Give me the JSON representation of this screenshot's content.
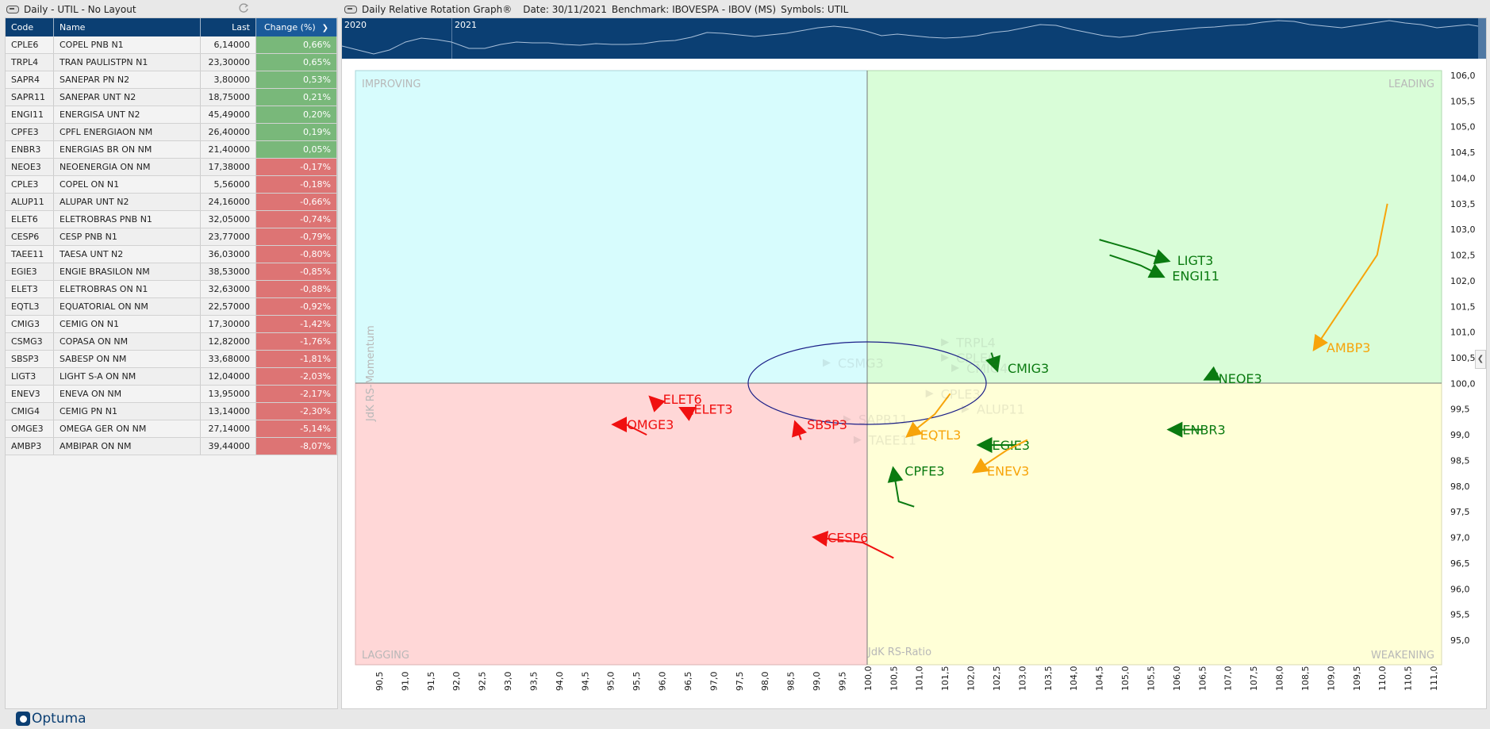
{
  "left_panel": {
    "title": "Daily - UTIL - No Layout",
    "columns": [
      "Code",
      "Name",
      "Last",
      "Change (%)"
    ],
    "rows": [
      {
        "code": "CPLE6",
        "name": "COPEL PNB N1",
        "last": "6,14000",
        "change": "0,66%",
        "dir": "pos"
      },
      {
        "code": "TRPL4",
        "name": "TRAN PAULISTPN  N1",
        "last": "23,30000",
        "change": "0,65%",
        "dir": "pos"
      },
      {
        "code": "SAPR4",
        "name": "SANEPAR PN  N2",
        "last": "3,80000",
        "change": "0,53%",
        "dir": "pos"
      },
      {
        "code": "SAPR11",
        "name": "SANEPAR UNT N2",
        "last": "18,75000",
        "change": "0,21%",
        "dir": "pos"
      },
      {
        "code": "ENGI11",
        "name": "ENERGISA  UNT N2",
        "last": "45,49000",
        "change": "0,20%",
        "dir": "pos"
      },
      {
        "code": "CPFE3",
        "name": "CPFL ENERGIAON  NM",
        "last": "26,40000",
        "change": "0,19%",
        "dir": "pos"
      },
      {
        "code": "ENBR3",
        "name": "ENERGIAS BR ON  NM",
        "last": "21,40000",
        "change": "0,05%",
        "dir": "pos"
      },
      {
        "code": "NEOE3",
        "name": "NEOENERGIA  ON  NM",
        "last": "17,38000",
        "change": "-0,17%",
        "dir": "neg"
      },
      {
        "code": "CPLE3",
        "name": "COPEL ON  N1",
        "last": "5,56000",
        "change": "-0,18%",
        "dir": "neg"
      },
      {
        "code": "ALUP11",
        "name": "ALUPAR  UNT N2",
        "last": "24,16000",
        "change": "-0,66%",
        "dir": "neg"
      },
      {
        "code": "ELET6",
        "name": "ELETROBRAS  PNB N1",
        "last": "32,05000",
        "change": "-0,74%",
        "dir": "neg"
      },
      {
        "code": "CESP6",
        "name": "CESP  PNB N1",
        "last": "23,77000",
        "change": "-0,79%",
        "dir": "neg"
      },
      {
        "code": "TAEE11",
        "name": "TAESA UNT N2",
        "last": "36,03000",
        "change": "-0,80%",
        "dir": "neg"
      },
      {
        "code": "EGIE3",
        "name": "ENGIE BRASILON  NM",
        "last": "38,53000",
        "change": "-0,85%",
        "dir": "neg"
      },
      {
        "code": "ELET3",
        "name": "ELETROBRAS  ON  N1",
        "last": "32,63000",
        "change": "-0,88%",
        "dir": "neg"
      },
      {
        "code": "EQTL3",
        "name": "EQUATORIAL  ON  NM",
        "last": "22,57000",
        "change": "-0,92%",
        "dir": "neg"
      },
      {
        "code": "CMIG3",
        "name": "CEMIG ON  N1",
        "last": "17,30000",
        "change": "-1,42%",
        "dir": "neg"
      },
      {
        "code": "CSMG3",
        "name": "COPASA  ON  NM",
        "last": "12,82000",
        "change": "-1,76%",
        "dir": "neg"
      },
      {
        "code": "SBSP3",
        "name": "SABESP  ON  NM",
        "last": "33,68000",
        "change": "-1,81%",
        "dir": "neg"
      },
      {
        "code": "LIGT3",
        "name": "LIGHT S-A ON  NM",
        "last": "12,04000",
        "change": "-2,03%",
        "dir": "neg"
      },
      {
        "code": "ENEV3",
        "name": "ENEVA ON  NM",
        "last": "13,95000",
        "change": "-2,17%",
        "dir": "neg"
      },
      {
        "code": "CMIG4",
        "name": "CEMIG PN  N1",
        "last": "13,14000",
        "change": "-2,30%",
        "dir": "neg"
      },
      {
        "code": "OMGE3",
        "name": "OMEGA GER ON  NM",
        "last": "27,14000",
        "change": "-5,14%",
        "dir": "neg"
      },
      {
        "code": "AMBP3",
        "name": "AMBIPAR ON  NM",
        "last": "39,44000",
        "change": "-8,07%",
        "dir": "neg"
      }
    ]
  },
  "chart_panel": {
    "title": "Daily Relative Rotation Graph®",
    "date_label": "Date: 30/11/2021",
    "benchmark_label": "Benchmark: IBOVESPA - IBOV (MS)",
    "symbols_label": "Symbols: UTIL",
    "navigator_years": [
      "2020",
      "2021"
    ]
  },
  "brand": {
    "logo_text": "Optuma"
  },
  "colors": {
    "header_bg": "#0b3f73",
    "positive": "#79b87a",
    "negative": "#dd7474",
    "leading": "#d9fdd8",
    "improving": "#d7fcfd",
    "lagging": "#ffd7d7",
    "weakening": "#ffffd7",
    "green_series": "#0a7a10",
    "orange_series": "#f7a40a",
    "red_series": "#f01010"
  },
  "chart_data": {
    "type": "scatter",
    "title": "Daily Relative Rotation Graph®",
    "xlabel": "JdK RS-Ratio",
    "ylabel": "JdK RS-Momentum",
    "xlim": [
      90.5,
      111.0
    ],
    "ylim": [
      95.0,
      106.0
    ],
    "x_ticks": [
      "90,5",
      "91,0",
      "91,5",
      "92,0",
      "92,5",
      "93,0",
      "93,5",
      "94,0",
      "94,5",
      "95,0",
      "95,5",
      "96,0",
      "96,5",
      "97,0",
      "97,5",
      "98,0",
      "98,5",
      "99,0",
      "99,5",
      "100,0",
      "100,5",
      "101,0",
      "101,5",
      "102,0",
      "102,5",
      "103,0",
      "103,5",
      "104,0",
      "104,5",
      "105,0",
      "105,5",
      "106,0",
      "106,5",
      "107,0",
      "107,5",
      "108,0",
      "108,5",
      "109,0",
      "109,5",
      "110,0",
      "110,5",
      "111,0"
    ],
    "y_ticks": [
      "106,0",
      "105,5",
      "105,0",
      "104,5",
      "104,0",
      "103,5",
      "103,0",
      "102,5",
      "102,0",
      "101,5",
      "101,0",
      "100,5",
      "100,0",
      "99,5",
      "99,0",
      "98,5",
      "98,0",
      "97,5",
      "97,0",
      "96,5",
      "96,0",
      "95,5",
      "95,0"
    ],
    "quadrants": [
      "IMPROVING",
      "LEADING",
      "LAGGING",
      "WEAKENING"
    ],
    "grid": false,
    "center": [
      100.0,
      100.0
    ],
    "series": [
      {
        "name": "LIGT3",
        "color": "green",
        "tail": [
          [
            104.5,
            102.8
          ],
          [
            105.2,
            102.6
          ],
          [
            105.8,
            102.4
          ]
        ]
      },
      {
        "name": "ENGI11",
        "color": "green",
        "tail": [
          [
            104.7,
            102.5
          ],
          [
            105.3,
            102.3
          ],
          [
            105.7,
            102.1
          ]
        ]
      },
      {
        "name": "AMBP3",
        "color": "orange",
        "tail": [
          [
            110.1,
            103.5
          ],
          [
            109.9,
            102.5
          ],
          [
            108.7,
            100.7
          ]
        ]
      },
      {
        "name": "CMIG3",
        "color": "green",
        "tail": [
          [
            102.4,
            100.6
          ],
          [
            102.5,
            100.3
          ]
        ]
      },
      {
        "name": "NEOE3",
        "color": "green",
        "tail": [
          [
            106.8,
            100.2
          ],
          [
            106.6,
            100.1
          ]
        ]
      },
      {
        "name": "ENBR3",
        "color": "green",
        "tail": [
          [
            106.5,
            99.1
          ],
          [
            106.2,
            99.1
          ],
          [
            105.9,
            99.1
          ]
        ]
      },
      {
        "name": "EGIE3",
        "color": "green",
        "tail": [
          [
            102.9,
            98.8
          ],
          [
            102.4,
            98.8
          ],
          [
            102.2,
            98.8
          ]
        ]
      },
      {
        "name": "ENEV3",
        "color": "orange",
        "tail": [
          [
            103.1,
            98.9
          ],
          [
            102.7,
            98.7
          ],
          [
            102.1,
            98.3
          ]
        ]
      },
      {
        "name": "EQTL3",
        "color": "orange",
        "tail": [
          [
            101.6,
            99.8
          ],
          [
            101.3,
            99.4
          ],
          [
            100.8,
            99.0
          ]
        ]
      },
      {
        "name": "CPFE3",
        "color": "green",
        "tail": [
          [
            100.9,
            97.6
          ],
          [
            100.6,
            97.7
          ],
          [
            100.5,
            98.3
          ]
        ]
      },
      {
        "name": "CESP6",
        "color": "red",
        "tail": [
          [
            100.5,
            96.6
          ],
          [
            99.9,
            96.9
          ],
          [
            99.0,
            97.0
          ]
        ]
      },
      {
        "name": "SBSP3",
        "color": "red",
        "tail": [
          [
            98.7,
            98.9
          ],
          [
            98.6,
            99.2
          ]
        ]
      },
      {
        "name": "ELET6",
        "color": "red",
        "tail": [
          [
            95.9,
            99.6
          ],
          [
            95.8,
            99.7
          ]
        ]
      },
      {
        "name": "ELET3",
        "color": "red",
        "tail": [
          [
            96.6,
            99.4
          ],
          [
            96.4,
            99.5
          ]
        ]
      },
      {
        "name": "OMGE3",
        "color": "red",
        "tail": [
          [
            95.7,
            99.0
          ],
          [
            95.3,
            99.2
          ],
          [
            95.1,
            99.2
          ]
        ]
      },
      {
        "name": "CSMG3",
        "color": "faded",
        "tail": [
          [
            99.2,
            100.4
          ]
        ]
      },
      {
        "name": "TRPL4",
        "color": "faded",
        "tail": [
          [
            101.5,
            100.8
          ]
        ]
      },
      {
        "name": "CPLE6",
        "color": "faded",
        "tail": [
          [
            101.5,
            100.5
          ]
        ]
      },
      {
        "name": "CMIG4",
        "color": "faded",
        "tail": [
          [
            101.7,
            100.3
          ]
        ]
      },
      {
        "name": "CPLE3",
        "color": "faded",
        "tail": [
          [
            101.2,
            99.8
          ]
        ]
      },
      {
        "name": "ALUP11",
        "color": "faded",
        "tail": [
          [
            101.9,
            99.5
          ]
        ]
      },
      {
        "name": "SAPR11",
        "color": "faded",
        "tail": [
          [
            99.6,
            99.3
          ]
        ]
      },
      {
        "name": "TAEE11",
        "color": "faded",
        "tail": [
          [
            99.8,
            98.9
          ]
        ]
      }
    ]
  }
}
